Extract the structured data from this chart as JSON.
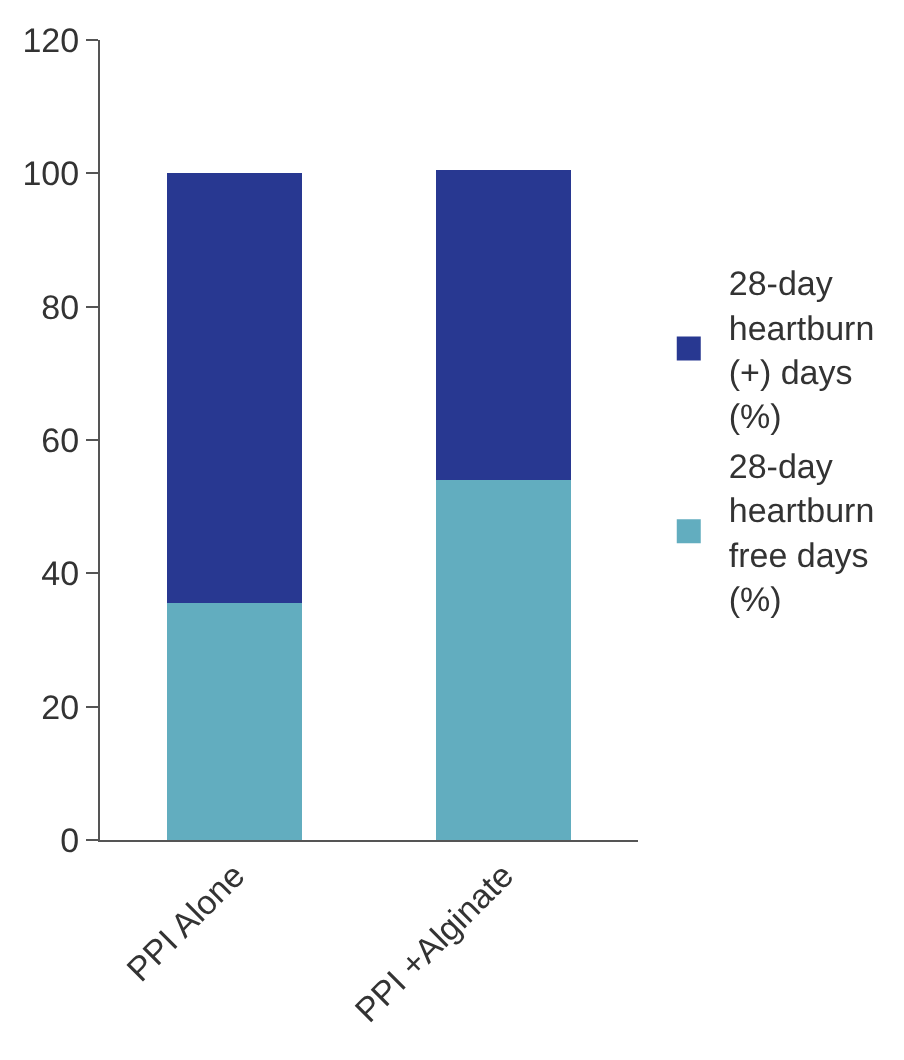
{
  "chart_data": {
    "type": "bar",
    "stacked": true,
    "categories": [
      "PPI Alone",
      "PPI +Alginate"
    ],
    "series": [
      {
        "name": "28-day heartburn free days (%)",
        "color": "#62adbf",
        "values": [
          35.5,
          54
        ]
      },
      {
        "name": "28-day heartburn (+) days (%)",
        "color": "#283891",
        "values": [
          64.5,
          46.5
        ]
      }
    ],
    "ylim": [
      0,
      120
    ],
    "yticks": [
      0,
      20,
      40,
      60,
      80,
      100,
      120
    ],
    "legend": "right"
  }
}
